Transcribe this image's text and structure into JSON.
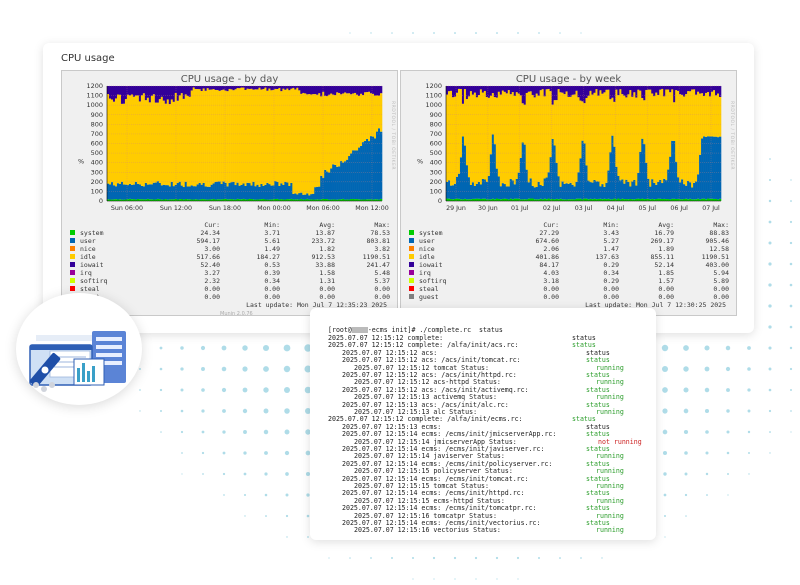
{
  "panel": {
    "title": "CPU usage",
    "last_update_day": "Last update: Mon Jul  7 12:35:23 2025",
    "last_update_week": "Last update: Mon Jul  7 12:30:25 2025",
    "munin_version": "Munin 2.0.76",
    "side_label": "RRDTOOL / TOBI OETIKER",
    "legend_headers": {
      "cur": "Cur:",
      "min": "Min:",
      "avg": "Avg:",
      "max": "Max:"
    }
  },
  "charts": [
    {
      "title": "CPU usage - by day",
      "ylabel": "%",
      "y_ticks": [
        "0",
        "100",
        "200",
        "300",
        "400",
        "500",
        "600",
        "700",
        "800",
        "900",
        "1000",
        "1100",
        "1200"
      ],
      "x_ticks": [
        "Sun 06:00",
        "Sun 12:00",
        "Sun 18:00",
        "Mon 00:00",
        "Mon 06:00",
        "Mon 12:00"
      ],
      "legend": [
        {
          "name": "system",
          "color": "#00cc00",
          "cur": "24.34",
          "min": "3.71",
          "avg": "13.87",
          "max": "78.53"
        },
        {
          "name": "user",
          "color": "#0066b3",
          "cur": "594.17",
          "min": "5.61",
          "avg": "233.72",
          "max": "803.81"
        },
        {
          "name": "nice",
          "color": "#ff8000",
          "cur": "3.00",
          "min": "1.49",
          "avg": "1.82",
          "max": "3.82"
        },
        {
          "name": "idle",
          "color": "#ffcc00",
          "cur": "517.66",
          "min": "184.27",
          "avg": "912.53",
          "max": "1190.51"
        },
        {
          "name": "iowait",
          "color": "#330099",
          "cur": "52.40",
          "min": "0.53",
          "avg": "33.88",
          "max": "241.47"
        },
        {
          "name": "irq",
          "color": "#990099",
          "cur": "3.27",
          "min": "0.39",
          "avg": "1.58",
          "max": "5.48"
        },
        {
          "name": "softirq",
          "color": "#ccff00",
          "cur": "2.32",
          "min": "0.34",
          "avg": "1.31",
          "max": "5.37"
        },
        {
          "name": "steal",
          "color": "#ff0000",
          "cur": "0.00",
          "min": "0.00",
          "avg": "0.00",
          "max": "0.00"
        },
        {
          "name": "guest",
          "color": "#808080",
          "cur": "0.00",
          "min": "0.00",
          "avg": "0.00",
          "max": "0.00"
        }
      ]
    },
    {
      "title": "CPU usage - by week",
      "ylabel": "%",
      "y_ticks": [
        "0",
        "100",
        "200",
        "300",
        "400",
        "500",
        "600",
        "700",
        "800",
        "900",
        "1000",
        "1100",
        "1200"
      ],
      "x_ticks": [
        "29 Jun",
        "30 Jun",
        "01 Jul",
        "02 Jul",
        "03 Jul",
        "04 Jul",
        "05 Jul",
        "06 Jul",
        "07 Jul"
      ],
      "legend": [
        {
          "name": "system",
          "color": "#00cc00",
          "cur": "27.29",
          "min": "3.43",
          "avg": "16.79",
          "max": "88.83"
        },
        {
          "name": "user",
          "color": "#0066b3",
          "cur": "674.60",
          "min": "5.27",
          "avg": "269.17",
          "max": "905.46"
        },
        {
          "name": "nice",
          "color": "#ff8000",
          "cur": "2.06",
          "min": "1.47",
          "avg": "1.89",
          "max": "12.58"
        },
        {
          "name": "idle",
          "color": "#ffcc00",
          "cur": "401.86",
          "min": "137.63",
          "avg": "855.11",
          "max": "1190.51"
        },
        {
          "name": "iowait",
          "color": "#330099",
          "cur": "84.17",
          "min": "0.29",
          "avg": "52.14",
          "max": "403.00"
        },
        {
          "name": "irq",
          "color": "#990099",
          "cur": "4.03",
          "min": "0.34",
          "avg": "1.85",
          "max": "5.94"
        },
        {
          "name": "softirq",
          "color": "#ccff00",
          "cur": "3.18",
          "min": "0.29",
          "avg": "1.57",
          "max": "5.89"
        },
        {
          "name": "steal",
          "color": "#ff0000",
          "cur": "0.00",
          "min": "0.00",
          "avg": "0.00",
          "max": "0.00"
        },
        {
          "name": "guest",
          "color": "#808080",
          "cur": "0.00",
          "min": "0.00",
          "avg": "0.00",
          "max": "0.00"
        }
      ]
    }
  ],
  "terminal": {
    "prompt": "[root@",
    "prompt_rest": "-ecms init]# ./complete.rc  status",
    "lines": [
      {
        "indent": 0,
        "text": "2025.07.07 12:15:12 complete:",
        "status": "status",
        "status_color": "#222"
      },
      {
        "indent": 0,
        "text": "2025.07.07 12:15:12 complete: /alfa/init/acs.rc:",
        "status": "status",
        "status_color": "#2a9d2a"
      },
      {
        "indent": 1,
        "text": "2025.07.07 12:15:12 acs:",
        "status": "status",
        "status_color": "#222"
      },
      {
        "indent": 1,
        "text": "2025.07.07 12:15:12 acs: /acs/init/tomcat.rc:",
        "status": "status",
        "status_color": "#2a9d2a"
      },
      {
        "indent": 2,
        "text": "2025.07.07 12:15:12 tomcat Status:",
        "status": "running",
        "status_color": "#2a9d2a"
      },
      {
        "indent": 1,
        "text": "2025.07.07 12:15:12 acs: /acs/init/httpd.rc:",
        "status": "status",
        "status_color": "#2a9d2a"
      },
      {
        "indent": 2,
        "text": "2025.07.07 12:15:12 acs-httpd Status:",
        "status": "running",
        "status_color": "#2a9d2a"
      },
      {
        "indent": 1,
        "text": "2025.07.07 12:15:12 acs: /acs/init/activemq.rc:",
        "status": "status",
        "status_color": "#2a9d2a"
      },
      {
        "indent": 2,
        "text": "2025.07.07 12:15:13 activemq Status:",
        "status": "running",
        "status_color": "#2a9d2a"
      },
      {
        "indent": 1,
        "text": "2025.07.07 12:15:13 acs: /acs/init/alc.rc:",
        "status": "status",
        "status_color": "#2a9d2a"
      },
      {
        "indent": 2,
        "text": "2025.07.07 12:15:13 alc Status:",
        "status": "running",
        "status_color": "#2a9d2a"
      },
      {
        "indent": 0,
        "text": "2025.07.07 12:15:12 complete: /alfa/init/ecms.rc:",
        "status": "status",
        "status_color": "#2a9d2a"
      },
      {
        "indent": 1,
        "text": "2025.07.07 12:15:13 ecms:",
        "status": "status",
        "status_color": "#222"
      },
      {
        "indent": 1,
        "text": "2025.07.07 12:15:14 ecms: /ecms/init/jmicserverApp.rc:",
        "status": "status",
        "status_color": "#2a9d2a"
      },
      {
        "indent": 2,
        "text": "2025.07.07 12:15:14 jmicserverApp Status:",
        "status": "not running",
        "status_color": "#cc2222"
      },
      {
        "indent": 1,
        "text": "2025.07.07 12:15:14 ecms: /ecms/init/javiserver.rc:",
        "status": "status",
        "status_color": "#2a9d2a"
      },
      {
        "indent": 2,
        "text": "2025.07.07 12:15:14 javiserver Status:",
        "status": "running",
        "status_color": "#2a9d2a"
      },
      {
        "indent": 1,
        "text": "2025.07.07 12:15:14 ecms: /ecms/init/policyserver.rc:",
        "status": "status",
        "status_color": "#2a9d2a"
      },
      {
        "indent": 2,
        "text": "2025.07.07 12:15:15 policyserver Status:",
        "status": "running",
        "status_color": "#2a9d2a"
      },
      {
        "indent": 1,
        "text": "2025.07.07 12:15:14 ecms: /ecms/init/tomcat.rc:",
        "status": "status",
        "status_color": "#2a9d2a"
      },
      {
        "indent": 2,
        "text": "2025.07.07 12:15:15 tomcat Status:",
        "status": "running",
        "status_color": "#2a9d2a"
      },
      {
        "indent": 1,
        "text": "2025.07.07 12:15:14 ecms: /ecms/init/httpd.rc:",
        "status": "status",
        "status_color": "#2a9d2a"
      },
      {
        "indent": 2,
        "text": "2025.07.07 12:15:15 ecms-httpd Status:",
        "status": "running",
        "status_color": "#2a9d2a"
      },
      {
        "indent": 1,
        "text": "2025.07.07 12:15:14 ecms: /ecms/init/tomcatpr.rc:",
        "status": "status",
        "status_color": "#2a9d2a"
      },
      {
        "indent": 2,
        "text": "2025.07.07 12:15:16 tomcatpr Status:",
        "status": "running",
        "status_color": "#2a9d2a"
      },
      {
        "indent": 1,
        "text": "2025.07.07 12:15:14 ecms: /ecms/init/vectorius.rc:",
        "status": "status",
        "status_color": "#2a9d2a"
      },
      {
        "indent": 2,
        "text": "2025.07.07 12:15:16 vectorius Status:",
        "status": "running",
        "status_color": "#2a9d2a"
      }
    ]
  },
  "colors": {
    "system": "#00cc00",
    "user": "#0066b3",
    "idle": "#ffcc00",
    "iowait": "#330099",
    "softirq": "#ccff00",
    "grid": "#d08080",
    "dots": "#a6d8e6"
  },
  "icons": [
    "server-dashboard-illustration-icon"
  ]
}
